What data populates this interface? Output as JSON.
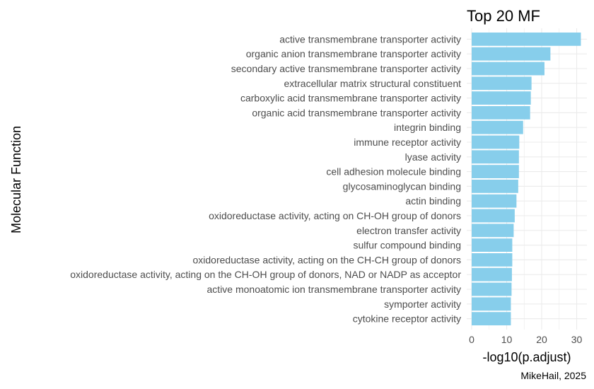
{
  "chart_data": {
    "type": "bar",
    "orientation": "horizontal",
    "title": "Top 20 MF",
    "xlabel": "-log10(p.adjust)",
    "ylabel": "Molecular Function",
    "caption": "MikeHail, 2025",
    "bar_color": "#87ceeb",
    "grid": true,
    "xlim": [
      0,
      32
    ],
    "xticks": [
      "0",
      "10",
      "20",
      "30"
    ],
    "categories": [
      "active transmembrane transporter activity",
      "organic anion transmembrane transporter activity",
      "secondary active transmembrane transporter activity",
      "extracellular matrix structural constituent",
      "carboxylic acid transmembrane transporter activity",
      "organic acid transmembrane transporter activity",
      "integrin binding",
      "immune receptor activity",
      "lyase activity",
      "cell adhesion molecule binding",
      "glycosaminoglycan binding",
      "actin binding",
      "oxidoreductase activity, acting on CH-OH group of donors",
      "electron transfer activity",
      "sulfur compound binding",
      "oxidoreductase activity, acting on the CH-CH group of donors",
      "oxidoreductase activity, acting on the CH-OH group of donors, NAD or NADP as acceptor",
      "active monoatomic ion transmembrane transporter activity",
      "symporter activity",
      "cytokine receptor activity"
    ],
    "values": [
      31.2,
      22.5,
      20.8,
      17.1,
      16.9,
      16.7,
      14.7,
      13.6,
      13.5,
      13.5,
      13.3,
      12.8,
      12.3,
      12.0,
      11.6,
      11.6,
      11.5,
      11.4,
      11.2,
      11.2
    ]
  }
}
